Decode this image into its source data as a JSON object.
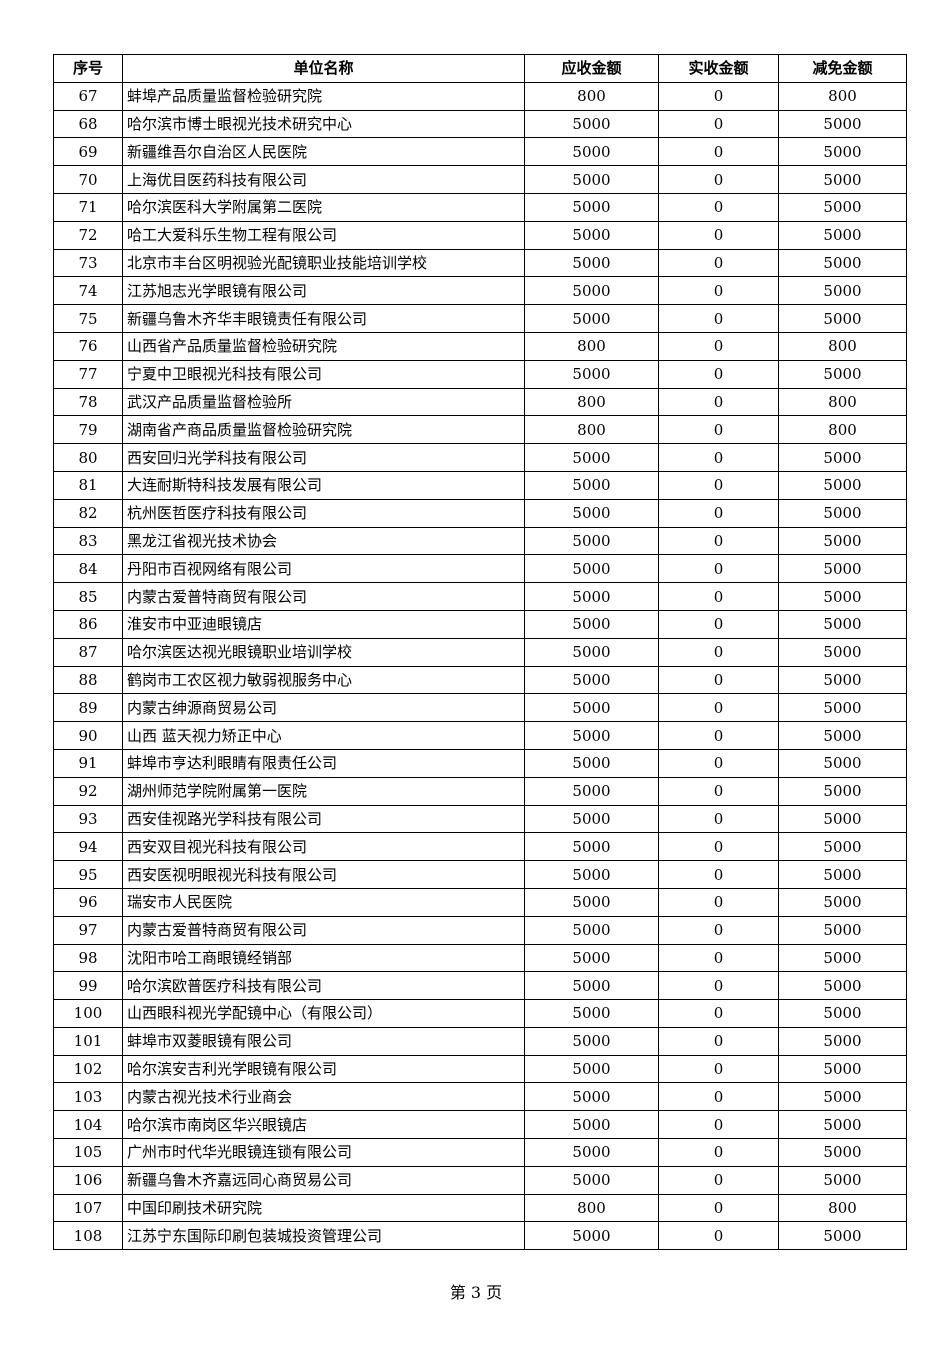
{
  "table": {
    "headers": [
      "序号",
      "单位名称",
      "应收金额",
      "实收金额",
      "减免金额"
    ],
    "rows": [
      [
        "67",
        "蚌埠产品质量监督检验研究院",
        "800",
        "0",
        "800"
      ],
      [
        "68",
        "哈尔滨市博士眼视光技术研究中心",
        "5000",
        "0",
        "5000"
      ],
      [
        "69",
        "新疆维吾尔自治区人民医院",
        "5000",
        "0",
        "5000"
      ],
      [
        "70",
        "上海优目医药科技有限公司",
        "5000",
        "0",
        "5000"
      ],
      [
        "71",
        "哈尔滨医科大学附属第二医院",
        "5000",
        "0",
        "5000"
      ],
      [
        "72",
        "哈工大爱科乐生物工程有限公司",
        "5000",
        "0",
        "5000"
      ],
      [
        "73",
        "北京市丰台区明视验光配镜职业技能培训学校",
        "5000",
        "0",
        "5000"
      ],
      [
        "74",
        "江苏旭志光学眼镜有限公司",
        "5000",
        "0",
        "5000"
      ],
      [
        "75",
        "新疆乌鲁木齐华丰眼镜责任有限公司",
        "5000",
        "0",
        "5000"
      ],
      [
        "76",
        "山西省产品质量监督检验研究院",
        "800",
        "0",
        "800"
      ],
      [
        "77",
        "宁夏中卫眼视光科技有限公司",
        "5000",
        "0",
        "5000"
      ],
      [
        "78",
        "武汉产品质量监督检验所",
        "800",
        "0",
        "800"
      ],
      [
        "79",
        "湖南省产商品质量监督检验研究院",
        "800",
        "0",
        "800"
      ],
      [
        "80",
        "西安回归光学科技有限公司",
        "5000",
        "0",
        "5000"
      ],
      [
        "81",
        "大连耐斯特科技发展有限公司",
        "5000",
        "0",
        "5000"
      ],
      [
        "82",
        "杭州医哲医疗科技有限公司",
        "5000",
        "0",
        "5000"
      ],
      [
        "83",
        "黑龙江省视光技术协会",
        "5000",
        "0",
        "5000"
      ],
      [
        "84",
        "丹阳市百视网络有限公司",
        "5000",
        "0",
        "5000"
      ],
      [
        "85",
        "内蒙古爱普特商贸有限公司",
        "5000",
        "0",
        "5000"
      ],
      [
        "86",
        "淮安市中亚迪眼镜店",
        "5000",
        "0",
        "5000"
      ],
      [
        "87",
        "哈尔滨医达视光眼镜职业培训学校",
        "5000",
        "0",
        "5000"
      ],
      [
        "88",
        "鹤岗市工农区视力敏弱视服务中心",
        "5000",
        "0",
        "5000"
      ],
      [
        "89",
        "内蒙古绅源商贸易公司",
        "5000",
        "0",
        "5000"
      ],
      [
        "90",
        "山西  蓝天视力矫正中心",
        "5000",
        "0",
        "5000"
      ],
      [
        "91",
        "蚌埠市亨达利眼睛有限责任公司",
        "5000",
        "0",
        "5000"
      ],
      [
        "92",
        "湖州师范学院附属第一医院",
        "5000",
        "0",
        "5000"
      ],
      [
        "93",
        "西安佳视路光学科技有限公司",
        "5000",
        "0",
        "5000"
      ],
      [
        "94",
        "西安双目视光科技有限公司",
        "5000",
        "0",
        "5000"
      ],
      [
        "95",
        "西安医视明眼视光科技有限公司",
        "5000",
        "0",
        "5000"
      ],
      [
        "96",
        "瑞安市人民医院",
        "5000",
        "0",
        "5000"
      ],
      [
        "97",
        "内蒙古爱普特商贸有限公司",
        "5000",
        "0",
        "5000"
      ],
      [
        "98",
        "沈阳市哈工商眼镜经销部",
        "5000",
        "0",
        "5000"
      ],
      [
        "99",
        "哈尔滨欧普医疗科技有限公司",
        "5000",
        "0",
        "5000"
      ],
      [
        "100",
        "山西眼科视光学配镜中心（有限公司）",
        "5000",
        "0",
        "5000"
      ],
      [
        "101",
        "蚌埠市双菱眼镜有限公司",
        "5000",
        "0",
        "5000"
      ],
      [
        "102",
        "哈尔滨安吉利光学眼镜有限公司",
        "5000",
        "0",
        "5000"
      ],
      [
        "103",
        "内蒙古视光技术行业商会",
        "5000",
        "0",
        "5000"
      ],
      [
        "104",
        "哈尔滨市南岗区华兴眼镜店",
        "5000",
        "0",
        "5000"
      ],
      [
        "105",
        "广州市时代华光眼镜连锁有限公司",
        "5000",
        "0",
        "5000"
      ],
      [
        "106",
        "新疆乌鲁木齐嘉远同心商贸易公司",
        "5000",
        "0",
        "5000"
      ],
      [
        "107",
        "中国印刷技术研究院",
        "800",
        "0",
        "800"
      ],
      [
        "108",
        "江苏宁东国际印刷包装城投资管理公司",
        "5000",
        "0",
        "5000"
      ]
    ]
  },
  "footer": {
    "page_label": "第 3 页"
  }
}
